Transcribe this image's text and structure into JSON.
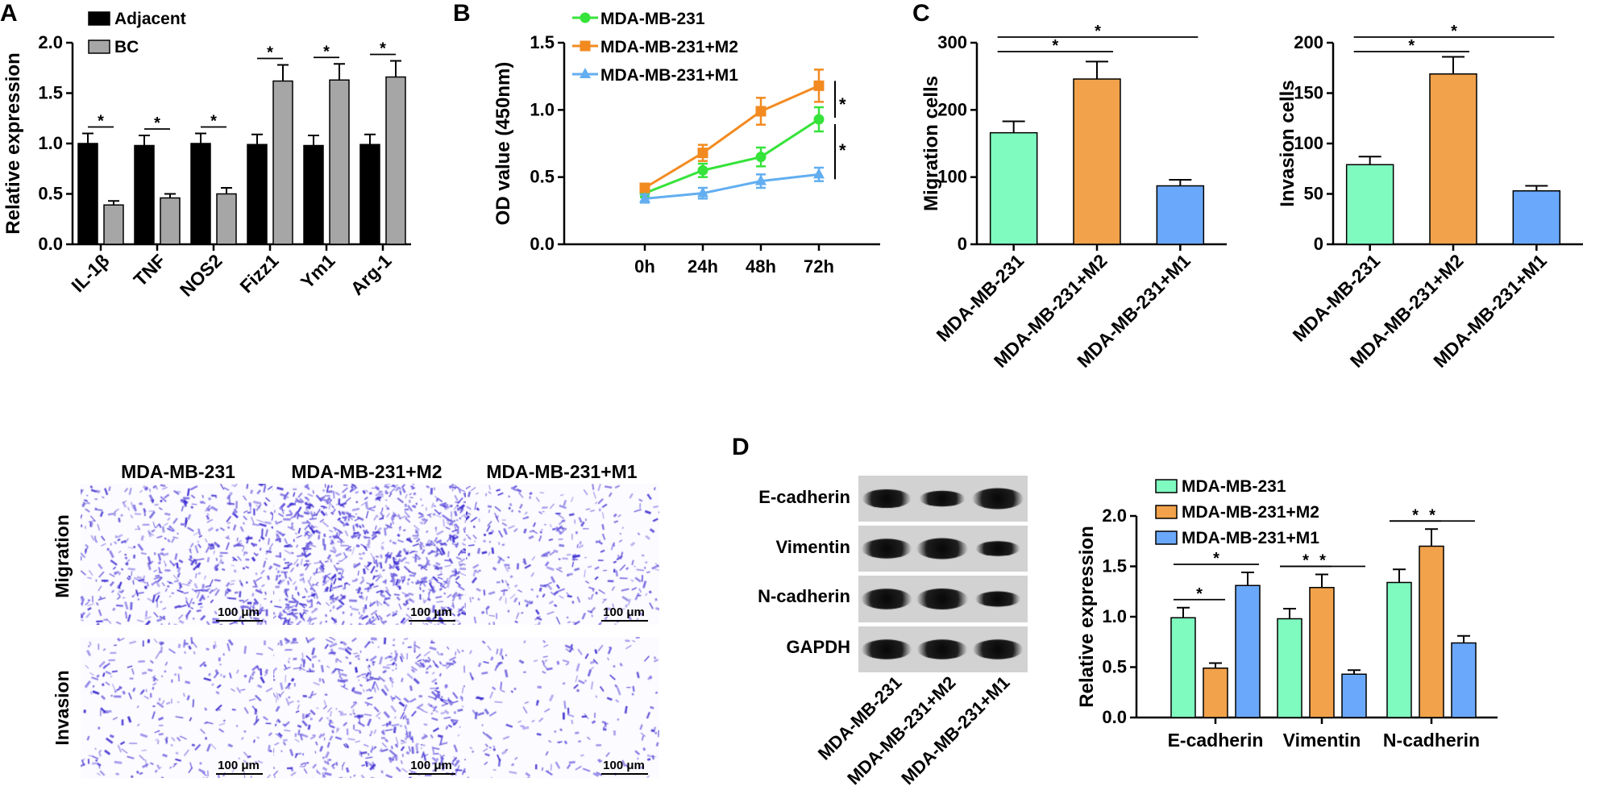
{
  "colors": {
    "adjacent": "#000000",
    "bc": "#a6a6a6",
    "mda": "#7ffbc0",
    "m2": "#f1a24a",
    "m1": "#6aa8fb",
    "line_mda": "#36e33a",
    "line_m2": "#f28a20",
    "line_m1": "#62aef0",
    "stain": "#3a2ad0"
  },
  "panel_letters": {
    "a": "A",
    "b": "B",
    "c": "C",
    "d": "D"
  },
  "significance": "*",
  "photos": {
    "columns": [
      "MDA-MB-231",
      "MDA-MB-231+M2",
      "MDA-MB-231+M1"
    ],
    "rows": [
      "Migration",
      "Invasion"
    ],
    "scale_bar": "100 μm"
  },
  "blot": {
    "rows": [
      "E-cadherin",
      "Vimentin",
      "N-cadherin",
      "GAPDH"
    ],
    "lanes": [
      "MDA-MB-231",
      "MDA-MB-231+M2",
      "MDA-MB-231+M1"
    ]
  },
  "chart_data": [
    {
      "id": "A",
      "type": "bar",
      "categories": [
        "IL-1β",
        "TNF",
        "NOS2",
        "Fizz1",
        "Ym1",
        "Arg-1"
      ],
      "series": [
        {
          "name": "Adjacent",
          "values": [
            1.0,
            0.98,
            1.0,
            0.99,
            0.98,
            0.99
          ],
          "errors": [
            0.1,
            0.1,
            0.1,
            0.1,
            0.1,
            0.1
          ]
        },
        {
          "name": "BC",
          "values": [
            0.39,
            0.46,
            0.5,
            1.62,
            1.63,
            1.66
          ],
          "errors": [
            0.04,
            0.04,
            0.06,
            0.16,
            0.16,
            0.16
          ]
        }
      ],
      "ylabel": "Relative expression",
      "ylim": [
        0,
        2.0
      ],
      "yticks": [
        "0.0",
        "0.5",
        "1.0",
        "1.5",
        "2.0"
      ],
      "legend": "top-left"
    },
    {
      "id": "B",
      "type": "line",
      "x": [
        "0h",
        "24h",
        "48h",
        "72h"
      ],
      "series": [
        {
          "name": "MDA-MB-231",
          "values": [
            0.38,
            0.55,
            0.65,
            0.93
          ],
          "errors": [
            0.03,
            0.05,
            0.07,
            0.09
          ]
        },
        {
          "name": "MDA-MB-231+M2",
          "values": [
            0.42,
            0.68,
            0.99,
            1.18
          ],
          "errors": [
            0.03,
            0.06,
            0.1,
            0.12
          ]
        },
        {
          "name": "MDA-MB-231+M1",
          "values": [
            0.34,
            0.38,
            0.47,
            0.52
          ],
          "errors": [
            0.03,
            0.04,
            0.05,
            0.05
          ]
        }
      ],
      "ylabel": "OD value (450nm)",
      "ylim": [
        0,
        1.5
      ],
      "yticks": [
        "0.0",
        "0.5",
        "1.0",
        "1.5"
      ],
      "legend": "top-left"
    },
    {
      "id": "C-migration",
      "type": "bar",
      "categories": [
        "MDA-MB-231",
        "MDA-MB-231+M2",
        "MDA-MB-231+M1"
      ],
      "values": [
        166,
        246,
        87
      ],
      "errors": [
        17,
        26,
        9
      ],
      "ylabel": "Migration cells",
      "ylim": [
        0,
        300
      ],
      "yticks": [
        "0",
        "100",
        "200",
        "300"
      ]
    },
    {
      "id": "C-invasion",
      "type": "bar",
      "categories": [
        "MDA-MB-231",
        "MDA-MB-231+M2",
        "MDA-MB-231+M1"
      ],
      "values": [
        79,
        169,
        53
      ],
      "errors": [
        8,
        17,
        5
      ],
      "ylabel": "Invasion cells",
      "ylim": [
        0,
        200
      ],
      "yticks": [
        "0",
        "50",
        "100",
        "150",
        "200"
      ]
    },
    {
      "id": "D",
      "type": "bar",
      "categories": [
        "E-cadherin",
        "Vimentin",
        "N-cadherin"
      ],
      "series": [
        {
          "name": "MDA-MB-231",
          "values": [
            0.99,
            0.98,
            1.34
          ],
          "errors": [
            0.1,
            0.1,
            0.13
          ]
        },
        {
          "name": "MDA-MB-231+M2",
          "values": [
            0.49,
            1.29,
            1.7
          ],
          "errors": [
            0.05,
            0.13,
            0.17
          ]
        },
        {
          "name": "MDA-MB-231+M1",
          "values": [
            1.31,
            0.43,
            0.74
          ],
          "errors": [
            0.13,
            0.04,
            0.07
          ]
        }
      ],
      "ylabel": "Relative expression",
      "ylim": [
        0,
        2.0
      ],
      "yticks": [
        "0.0",
        "0.5",
        "1.0",
        "1.5",
        "2.0"
      ],
      "legend": "top-left"
    }
  ]
}
